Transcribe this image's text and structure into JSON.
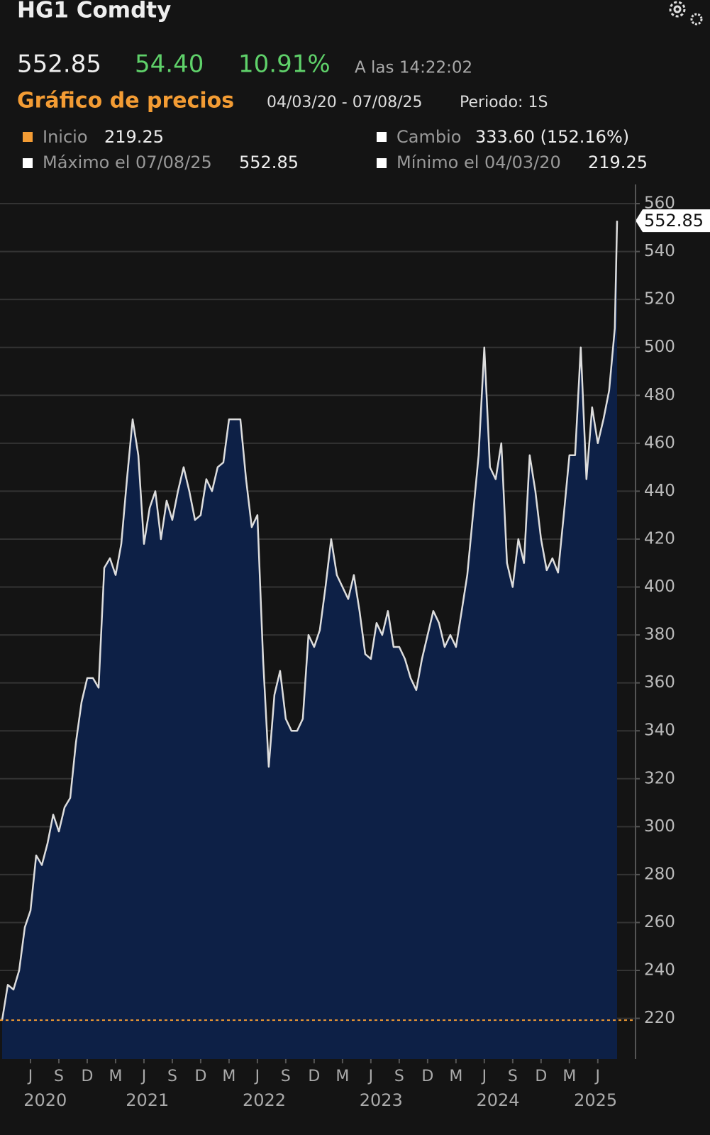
{
  "header": {
    "title": "HG1 Comdty",
    "price": "552.85",
    "change": "54.40",
    "change_pct": "10.91%",
    "time": "A las 14:22:02",
    "section": "Gráfico de precios",
    "range": "04/03/20 - 07/08/25",
    "period": "Periodo: 1S",
    "stats": [
      {
        "label": "Inicio",
        "value": "219.25"
      },
      {
        "label": "Cambio",
        "value": "333.60 (152.16%)"
      },
      {
        "label": "Máximo el 07/08/25",
        "value": "552.85"
      },
      {
        "label": "Mínimo el 04/03/20",
        "value": "219.25"
      }
    ]
  },
  "chart_data": {
    "type": "area",
    "x": [
      2020.17,
      2020.22,
      2020.27,
      2020.32,
      2020.37,
      2020.42,
      2020.47,
      2020.52,
      2020.57,
      2020.62,
      2020.67,
      2020.72,
      2020.77,
      2020.82,
      2020.87,
      2020.92,
      2020.97,
      2021.02,
      2021.07,
      2021.12,
      2021.17,
      2021.22,
      2021.27,
      2021.32,
      2021.37,
      2021.42,
      2021.47,
      2021.52,
      2021.57,
      2021.62,
      2021.67,
      2021.72,
      2021.77,
      2021.82,
      2021.87,
      2021.92,
      2021.97,
      2022.02,
      2022.07,
      2022.12,
      2022.17,
      2022.22,
      2022.27,
      2022.32,
      2022.37,
      2022.42,
      2022.47,
      2022.52,
      2022.57,
      2022.62,
      2022.67,
      2022.72,
      2022.77,
      2022.82,
      2022.87,
      2022.92,
      2022.97,
      2023.02,
      2023.07,
      2023.12,
      2023.17,
      2023.22,
      2023.27,
      2023.32,
      2023.37,
      2023.42,
      2023.47,
      2023.52,
      2023.57,
      2023.62,
      2023.67,
      2023.72,
      2023.77,
      2023.82,
      2023.87,
      2023.92,
      2023.97,
      2024.02,
      2024.07,
      2024.12,
      2024.17,
      2024.22,
      2024.27,
      2024.32,
      2024.37,
      2024.42,
      2024.47,
      2024.52,
      2024.57,
      2024.62,
      2024.67,
      2024.72,
      2024.77,
      2024.82,
      2024.87,
      2024.92,
      2024.97,
      2025.02,
      2025.07,
      2025.12,
      2025.17,
      2025.22,
      2025.27,
      2025.32,
      2025.37,
      2025.42,
      2025.47,
      2025.52,
      2025.57,
      2025.59
    ],
    "series": [
      {
        "color": "#dddddd",
        "fill": "#0d2046",
        "values": [
          219.25,
          234,
          232,
          240,
          258,
          265,
          288,
          284,
          293,
          305,
          298,
          308,
          312,
          335,
          352,
          362,
          362,
          358,
          408,
          412,
          405,
          418,
          445,
          470,
          455,
          418,
          433,
          440,
          420,
          436,
          428,
          440,
          450,
          440,
          428,
          430,
          445,
          440,
          450,
          452,
          470,
          470,
          470,
          445,
          425,
          430,
          370,
          325,
          355,
          365,
          345,
          340,
          340,
          345,
          380,
          375,
          382,
          400,
          420,
          405,
          400,
          395,
          405,
          390,
          372,
          370,
          385,
          380,
          390,
          375,
          375,
          370,
          362,
          357,
          370,
          380,
          390,
          385,
          375,
          380,
          375,
          390,
          405,
          430,
          455,
          500,
          450,
          445,
          460,
          410,
          400,
          420,
          410,
          455,
          440,
          420,
          407,
          412,
          406,
          430,
          455,
          455,
          500,
          445,
          475,
          460,
          470,
          482,
          508,
          552.85
        ]
      }
    ],
    "reference_line": {
      "value": 219.25,
      "color": "#f39c34"
    },
    "xlim": [
      2020.17,
      2025.59
    ],
    "ylim": [
      203,
      568
    ],
    "yticks": [
      220,
      240,
      260,
      280,
      300,
      320,
      340,
      360,
      380,
      400,
      420,
      440,
      460,
      480,
      500,
      520,
      540,
      560
    ],
    "xticks": [
      {
        "value": 2020.42,
        "label": "J"
      },
      {
        "value": 2020.67,
        "label": "S"
      },
      {
        "value": 2020.92,
        "label": "D"
      },
      {
        "value": 2021.17,
        "label": "M"
      },
      {
        "value": 2021.42,
        "label": "J"
      },
      {
        "value": 2021.67,
        "label": "S"
      },
      {
        "value": 2021.92,
        "label": "D"
      },
      {
        "value": 2022.17,
        "label": "M"
      },
      {
        "value": 2022.42,
        "label": "J"
      },
      {
        "value": 2022.67,
        "label": "S"
      },
      {
        "value": 2022.92,
        "label": "D"
      },
      {
        "value": 2023.17,
        "label": "M"
      },
      {
        "value": 2023.42,
        "label": "J"
      },
      {
        "value": 2023.67,
        "label": "S"
      },
      {
        "value": 2023.92,
        "label": "D"
      },
      {
        "value": 2024.17,
        "label": "M"
      },
      {
        "value": 2024.42,
        "label": "J"
      },
      {
        "value": 2024.67,
        "label": "S"
      },
      {
        "value": 2024.92,
        "label": "D"
      },
      {
        "value": 2025.17,
        "label": "M"
      },
      {
        "value": 2025.42,
        "label": "J"
      }
    ],
    "year_labels": [
      {
        "value": 2020.55,
        "label": "2020"
      },
      {
        "value": 2021.45,
        "label": "2021"
      },
      {
        "value": 2022.48,
        "label": "2022"
      },
      {
        "value": 2023.51,
        "label": "2023"
      },
      {
        "value": 2024.54,
        "label": "2024"
      },
      {
        "value": 2025.4,
        "label": "2025"
      }
    ],
    "grid": true
  }
}
